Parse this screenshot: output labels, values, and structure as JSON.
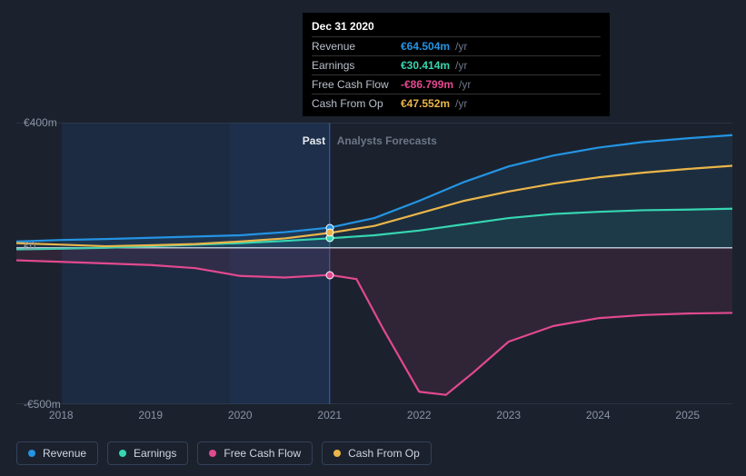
{
  "chart": {
    "background_color": "#1b222d",
    "currency_prefix": "€",
    "yaxis": {
      "min": -500,
      "max": 400,
      "ticks": [
        {
          "v": 400,
          "label": "€400m"
        },
        {
          "v": 0,
          "label": "€0"
        },
        {
          "v": -500,
          "label": "-€500m"
        }
      ],
      "zero_line_color": "#c8cfd9",
      "plot_border_color": "#3a4456"
    },
    "xaxis": {
      "min": 2017.5,
      "max": 2025.5,
      "ticks": [
        2018,
        2019,
        2020,
        2021,
        2022,
        2023,
        2024,
        2025
      ],
      "tick_color": "#3a4456"
    },
    "split": {
      "year": 2021,
      "past_label": "Past",
      "forecast_label": "Analysts Forecasts",
      "past_fill": "#1d2f4a",
      "split_line_color": "#2f5da8"
    },
    "series": [
      {
        "id": "revenue",
        "label": "Revenue",
        "color": "#2494e3",
        "area_opacity": 0.1,
        "data": [
          {
            "x": 2017.5,
            "y": 20
          },
          {
            "x": 2018,
            "y": 25
          },
          {
            "x": 2018.5,
            "y": 28
          },
          {
            "x": 2019,
            "y": 32
          },
          {
            "x": 2019.5,
            "y": 36
          },
          {
            "x": 2020,
            "y": 40
          },
          {
            "x": 2020.5,
            "y": 50
          },
          {
            "x": 2021,
            "y": 64.504
          },
          {
            "x": 2021.5,
            "y": 95
          },
          {
            "x": 2022,
            "y": 150
          },
          {
            "x": 2022.5,
            "y": 210
          },
          {
            "x": 2023,
            "y": 260
          },
          {
            "x": 2023.5,
            "y": 295
          },
          {
            "x": 2024,
            "y": 320
          },
          {
            "x": 2024.5,
            "y": 338
          },
          {
            "x": 2025,
            "y": 350
          },
          {
            "x": 2025.5,
            "y": 360
          }
        ]
      },
      {
        "id": "earnings",
        "label": "Earnings",
        "color": "#36d6b0",
        "area_opacity": 0.08,
        "data": [
          {
            "x": 2017.5,
            "y": -5
          },
          {
            "x": 2018,
            "y": -3
          },
          {
            "x": 2018.5,
            "y": 0
          },
          {
            "x": 2019,
            "y": 5
          },
          {
            "x": 2019.5,
            "y": 10
          },
          {
            "x": 2020,
            "y": 15
          },
          {
            "x": 2020.5,
            "y": 22
          },
          {
            "x": 2021,
            "y": 30.414
          },
          {
            "x": 2021.5,
            "y": 40
          },
          {
            "x": 2022,
            "y": 55
          },
          {
            "x": 2022.5,
            "y": 75
          },
          {
            "x": 2023,
            "y": 95
          },
          {
            "x": 2023.5,
            "y": 108
          },
          {
            "x": 2024,
            "y": 115
          },
          {
            "x": 2024.5,
            "y": 120
          },
          {
            "x": 2025,
            "y": 122
          },
          {
            "x": 2025.5,
            "y": 125
          }
        ]
      },
      {
        "id": "fcf",
        "label": "Free Cash Flow",
        "color": "#e2498f",
        "area_opacity": 0.1,
        "data": [
          {
            "x": 2017.5,
            "y": -40
          },
          {
            "x": 2018,
            "y": -45
          },
          {
            "x": 2018.5,
            "y": -50
          },
          {
            "x": 2019,
            "y": -55
          },
          {
            "x": 2019.5,
            "y": -65
          },
          {
            "x": 2020,
            "y": -90
          },
          {
            "x": 2020.5,
            "y": -95
          },
          {
            "x": 2021,
            "y": -86.799
          },
          {
            "x": 2021.3,
            "y": -100
          },
          {
            "x": 2021.6,
            "y": -260
          },
          {
            "x": 2022,
            "y": -460
          },
          {
            "x": 2022.3,
            "y": -470
          },
          {
            "x": 2022.6,
            "y": -400
          },
          {
            "x": 2023,
            "y": -300
          },
          {
            "x": 2023.5,
            "y": -250
          },
          {
            "x": 2024,
            "y": -225
          },
          {
            "x": 2024.5,
            "y": -215
          },
          {
            "x": 2025,
            "y": -210
          },
          {
            "x": 2025.5,
            "y": -208
          }
        ]
      },
      {
        "id": "cfo",
        "label": "Cash From Op",
        "color": "#eab54a",
        "area_opacity": 0.0,
        "data": [
          {
            "x": 2017.5,
            "y": 15
          },
          {
            "x": 2018,
            "y": 10
          },
          {
            "x": 2018.5,
            "y": 5
          },
          {
            "x": 2019,
            "y": 8
          },
          {
            "x": 2019.5,
            "y": 12
          },
          {
            "x": 2020,
            "y": 20
          },
          {
            "x": 2020.5,
            "y": 30
          },
          {
            "x": 2021,
            "y": 47.552
          },
          {
            "x": 2021.5,
            "y": 70
          },
          {
            "x": 2022,
            "y": 110
          },
          {
            "x": 2022.5,
            "y": 150
          },
          {
            "x": 2023,
            "y": 180
          },
          {
            "x": 2023.5,
            "y": 205
          },
          {
            "x": 2024,
            "y": 225
          },
          {
            "x": 2024.5,
            "y": 240
          },
          {
            "x": 2025,
            "y": 252
          },
          {
            "x": 2025.5,
            "y": 262
          }
        ]
      }
    ],
    "tooltip": {
      "date": "Dec 31 2020",
      "unit": "/yr",
      "rows": [
        {
          "label": "Revenue",
          "value": "€64.504m",
          "color": "#2494e3"
        },
        {
          "label": "Earnings",
          "value": "€30.414m",
          "color": "#36d6b0"
        },
        {
          "label": "Free Cash Flow",
          "value": "-€86.799m",
          "color": "#e2498f"
        },
        {
          "label": "Cash From Op",
          "value": "€47.552m",
          "color": "#eab54a"
        }
      ],
      "marker_x": 2021
    },
    "line_width": 2.2
  }
}
